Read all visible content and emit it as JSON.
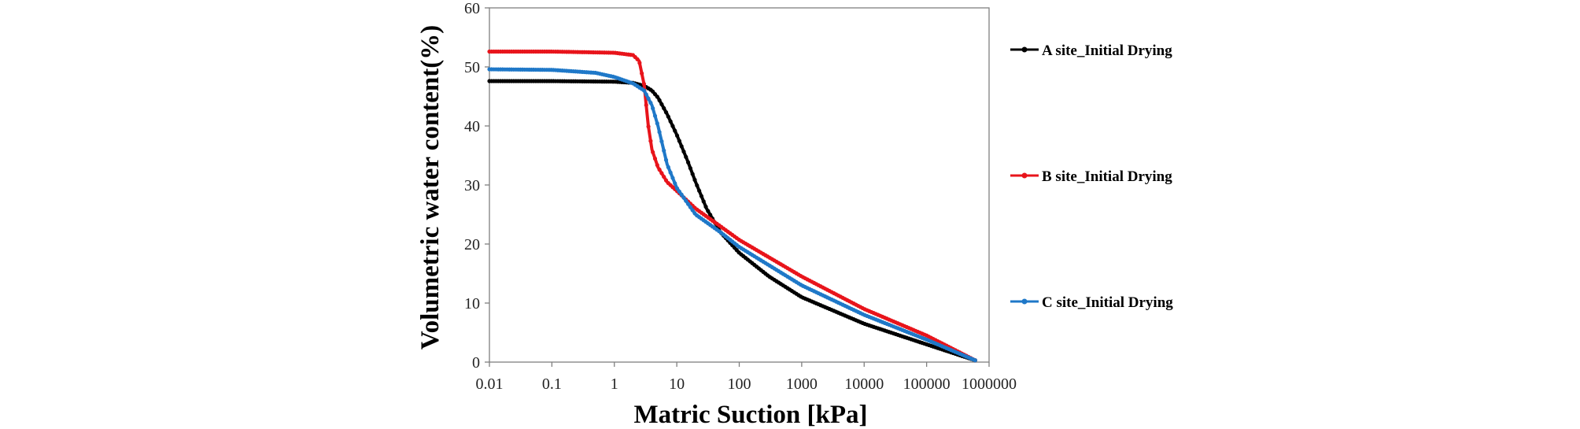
{
  "chart_data": {
    "type": "line",
    "title": "",
    "xlabel": "Matric Suction [kPa]",
    "ylabel": "Volumetric water content(%)",
    "xscale": "log",
    "xlim": [
      0.01,
      1000000
    ],
    "ylim": [
      0,
      60
    ],
    "xticks": [
      "0.01",
      "0.1",
      "1",
      "10",
      "100",
      "1000",
      "10000",
      "100000",
      "1000000"
    ],
    "yticks": [
      "0",
      "10",
      "20",
      "30",
      "40",
      "50",
      "60"
    ],
    "grid": false,
    "legend_position": "right",
    "series": [
      {
        "name": "A site_Initial Drying",
        "color": "#000000",
        "points": [
          [
            0.01,
            47.6
          ],
          [
            0.1,
            47.6
          ],
          [
            1,
            47.5
          ],
          [
            2,
            47.3
          ],
          [
            3,
            46.8
          ],
          [
            4,
            46.0
          ],
          [
            5,
            44.8
          ],
          [
            7,
            42.0
          ],
          [
            10,
            38.5
          ],
          [
            15,
            34.0
          ],
          [
            20,
            30.5
          ],
          [
            30,
            26.0
          ],
          [
            50,
            22.0
          ],
          [
            100,
            18.5
          ],
          [
            300,
            14.5
          ],
          [
            1000,
            11.0
          ],
          [
            10000,
            6.5
          ],
          [
            100000,
            3.0
          ],
          [
            600000,
            0.3
          ]
        ]
      },
      {
        "name": "B site_Initial Drying",
        "color": "#e8141b",
        "points": [
          [
            0.01,
            52.6
          ],
          [
            0.1,
            52.6
          ],
          [
            1,
            52.4
          ],
          [
            2,
            52.0
          ],
          [
            2.5,
            51.0
          ],
          [
            3,
            47.0
          ],
          [
            3.5,
            40.0
          ],
          [
            4,
            36.0
          ],
          [
            5,
            33.0
          ],
          [
            7,
            30.5
          ],
          [
            10,
            29.0
          ],
          [
            20,
            26.0
          ],
          [
            50,
            23.0
          ],
          [
            100,
            20.7
          ],
          [
            1000,
            14.5
          ],
          [
            10000,
            9.0
          ],
          [
            100000,
            4.5
          ],
          [
            600000,
            0.3
          ]
        ]
      },
      {
        "name": "C site_Initial Drying",
        "color": "#1f78c8",
        "points": [
          [
            0.01,
            49.6
          ],
          [
            0.1,
            49.5
          ],
          [
            0.5,
            49.0
          ],
          [
            1,
            48.3
          ],
          [
            2,
            47.2
          ],
          [
            3,
            46.0
          ],
          [
            4,
            43.5
          ],
          [
            5,
            40.0
          ],
          [
            7,
            33.5
          ],
          [
            10,
            29.5
          ],
          [
            20,
            25.0
          ],
          [
            50,
            22.0
          ],
          [
            100,
            19.5
          ],
          [
            1000,
            13.0
          ],
          [
            10000,
            8.0
          ],
          [
            100000,
            3.8
          ],
          [
            600000,
            0.3
          ]
        ]
      }
    ]
  }
}
